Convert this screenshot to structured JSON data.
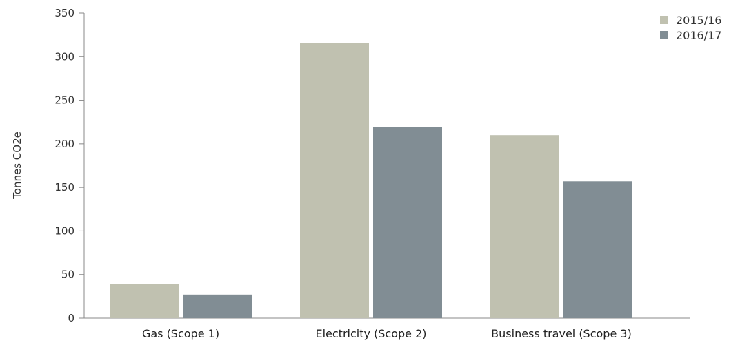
{
  "chart_data": {
    "type": "bar",
    "title": "",
    "xlabel": "",
    "ylabel": "Tonnes CO2e",
    "categories": [
      "Gas (Scope 1)",
      "Electricity (Scope 2)",
      "Business travel (Scope 3)"
    ],
    "series": [
      {
        "name": "2015/16",
        "color": "#c0c1b0",
        "values": [
          39,
          316,
          210
        ]
      },
      {
        "name": "2016/17",
        "color": "#818d94",
        "values": [
          27,
          219,
          157
        ]
      }
    ],
    "ylim": [
      0,
      350
    ],
    "yticks": [
      0,
      50,
      100,
      150,
      200,
      250,
      300,
      350
    ],
    "grid": false,
    "legend_position": "top-right"
  }
}
